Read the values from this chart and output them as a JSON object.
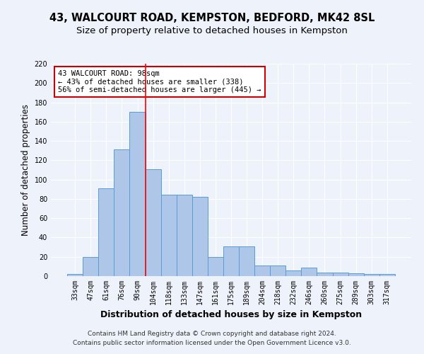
{
  "title_line1": "43, WALCOURT ROAD, KEMPSTON, BEDFORD, MK42 8SL",
  "title_line2": "Size of property relative to detached houses in Kempston",
  "xlabel": "Distribution of detached houses by size in Kempston",
  "ylabel": "Number of detached properties",
  "categories": [
    "33sqm",
    "47sqm",
    "61sqm",
    "76sqm",
    "90sqm",
    "104sqm",
    "118sqm",
    "133sqm",
    "147sqm",
    "161sqm",
    "175sqm",
    "189sqm",
    "204sqm",
    "218sqm",
    "232sqm",
    "246sqm",
    "260sqm",
    "275sqm",
    "289sqm",
    "303sqm",
    "317sqm"
  ],
  "values": [
    2,
    20,
    91,
    131,
    170,
    111,
    84,
    84,
    82,
    20,
    31,
    31,
    11,
    11,
    6,
    9,
    4,
    4,
    3,
    2,
    2
  ],
  "bar_color": "#aec6e8",
  "bar_edge_color": "#5b9bd5",
  "vline_color": "#ff0000",
  "vline_position": 4.5,
  "annotation_line1": "43 WALCOURT ROAD: 98sqm",
  "annotation_line2": "← 43% of detached houses are smaller (338)",
  "annotation_line3": "56% of semi-detached houses are larger (445) →",
  "annotation_box_color": "#ffffff",
  "annotation_box_edge": "#cc0000",
  "ylim": [
    0,
    220
  ],
  "yticks": [
    0,
    20,
    40,
    60,
    80,
    100,
    120,
    140,
    160,
    180,
    200,
    220
  ],
  "footer_line1": "Contains HM Land Registry data © Crown copyright and database right 2024.",
  "footer_line2": "Contains public sector information licensed under the Open Government Licence v3.0.",
  "background_color": "#eef2fb",
  "grid_color": "#ffffff",
  "title_fontsize": 10.5,
  "subtitle_fontsize": 9.5,
  "ylabel_fontsize": 8.5,
  "xlabel_fontsize": 9,
  "tick_fontsize": 7,
  "footer_fontsize": 6.5,
  "annot_fontsize": 7.5
}
